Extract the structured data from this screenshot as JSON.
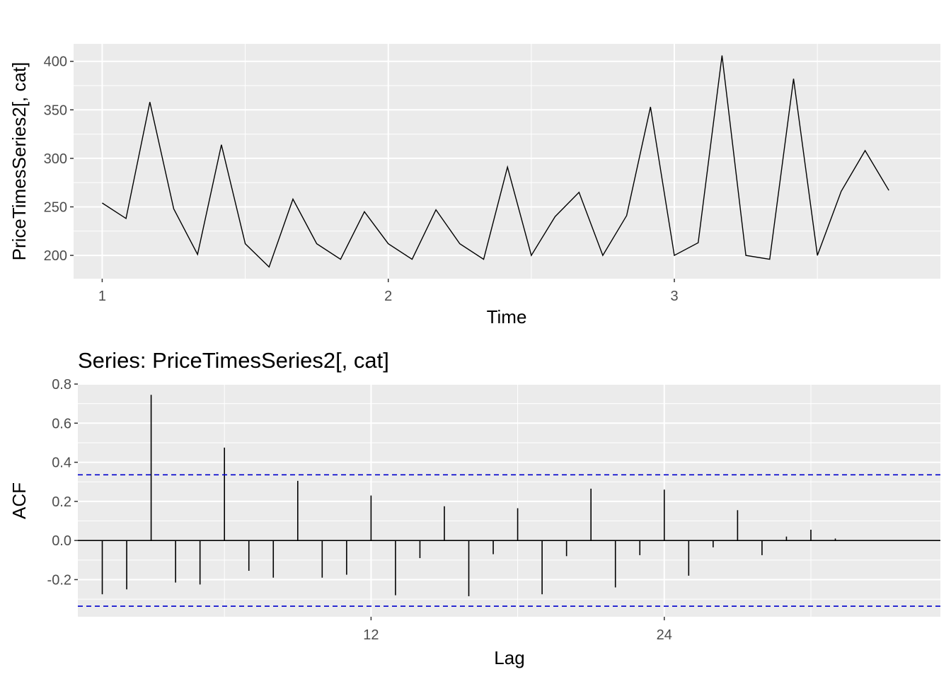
{
  "chart_data": [
    {
      "type": "line",
      "title": "",
      "xlabel": "Time",
      "ylabel": "PriceTimesSeries2[, cat]",
      "xlim": [
        0.9,
        3.93
      ],
      "ylim": [
        176,
        418
      ],
      "x_ticks": [
        1,
        2,
        3
      ],
      "x_tick_labels": [
        "1",
        "2",
        "3"
      ],
      "y_ticks": [
        200,
        250,
        300,
        350,
        400
      ],
      "y_tick_labels": [
        "200",
        "250",
        "300",
        "350",
        "400"
      ],
      "grid": true,
      "line_color": "#000000",
      "x": [
        1.0,
        1.0833,
        1.1667,
        1.25,
        1.3333,
        1.4167,
        1.5,
        1.5833,
        1.6667,
        1.75,
        1.8333,
        1.9167,
        2.0,
        2.0833,
        2.1667,
        2.25,
        2.3333,
        2.4167,
        2.5,
        2.5833,
        2.6667,
        2.75,
        2.8333,
        2.9167,
        3.0,
        3.0833,
        3.1667,
        3.25,
        3.3333,
        3.4167,
        3.5,
        3.5833,
        3.6667,
        3.75
      ],
      "y": [
        254,
        238,
        358,
        248,
        201,
        314,
        212,
        188,
        258,
        212,
        196,
        245,
        212,
        196,
        247,
        212,
        196,
        291,
        200,
        240,
        265,
        200,
        241,
        353,
        200,
        213,
        406,
        200,
        196,
        382,
        200,
        266,
        308,
        267
      ]
    },
    {
      "type": "bar",
      "title": "Series: PriceTimesSeries2[, cat]",
      "xlabel": "Lag",
      "ylabel": "ACF",
      "xlim": [
        0,
        35.3
      ],
      "ylim": [
        -0.39,
        0.8
      ],
      "x_ticks": [
        12,
        24
      ],
      "x_tick_labels": [
        "12",
        "24"
      ],
      "y_ticks": [
        -0.2,
        0.0,
        0.2,
        0.4,
        0.6,
        0.8
      ],
      "y_tick_labels": [
        "-0.2",
        "0.0",
        "0.2",
        "0.4",
        "0.6",
        "0.8"
      ],
      "grid": true,
      "ci_bound": 0.336,
      "ci_color": "#0000cc",
      "bar_color": "#000000",
      "lags": [
        1,
        2,
        3,
        4,
        5,
        6,
        7,
        8,
        9,
        10,
        11,
        12,
        13,
        14,
        15,
        16,
        17,
        18,
        19,
        20,
        21,
        22,
        23,
        24,
        25,
        26,
        27,
        28,
        29,
        30,
        31,
        32,
        33
      ],
      "values": [
        -0.275,
        -0.25,
        0.745,
        -0.215,
        -0.225,
        0.475,
        -0.155,
        -0.19,
        0.305,
        -0.19,
        -0.175,
        0.23,
        -0.28,
        -0.09,
        0.175,
        -0.285,
        -0.07,
        0.165,
        -0.275,
        -0.08,
        0.265,
        -0.24,
        -0.075,
        0.26,
        -0.18,
        -0.035,
        0.155,
        -0.075,
        0.02,
        0.055,
        0.01,
        0.0,
        0.0
      ]
    }
  ]
}
